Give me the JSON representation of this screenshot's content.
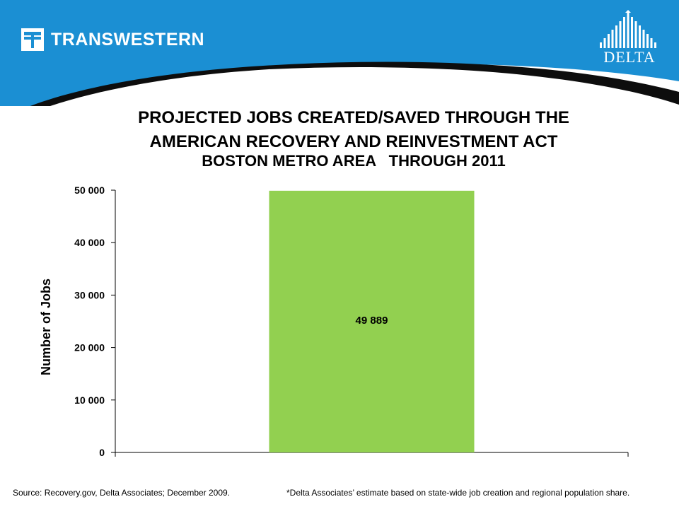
{
  "header": {
    "brand_left": "TRANSWESTERN",
    "brand_right": "DELTA",
    "logo_left_icon": "transwestern-t-logo-icon",
    "logo_right_icon": "delta-building-logo-icon",
    "colors": {
      "banner": "#1b8fd3",
      "swoosh": "#0d0d0d"
    }
  },
  "titles": {
    "line1": "PROJECTED JOBS CREATED/SAVED THROUGH THE",
    "line2": "AMERICAN RECOVERY AND REINVESTMENT ACT",
    "line3": "BOSTON METRO AREA   THROUGH 2011"
  },
  "chart_data": {
    "type": "bar",
    "categories": [
      ""
    ],
    "values": [
      49889
    ],
    "value_labels": [
      "49 889"
    ],
    "ylabel": "Number of Jobs",
    "ylim": [
      0,
      50000
    ],
    "yticks": [
      0,
      10000,
      20000,
      30000,
      40000,
      50000
    ],
    "ytick_labels": [
      "0",
      "10 000",
      "20 000",
      "30 000",
      "40 000",
      "50 000"
    ],
    "grid": false,
    "bar_color": "#92d050"
  },
  "footer": {
    "source": "Source: Recovery.gov, Delta Associates; December 2009.",
    "note": "*Delta Associates’ estimate based on state-wide job creation and regional population share."
  }
}
